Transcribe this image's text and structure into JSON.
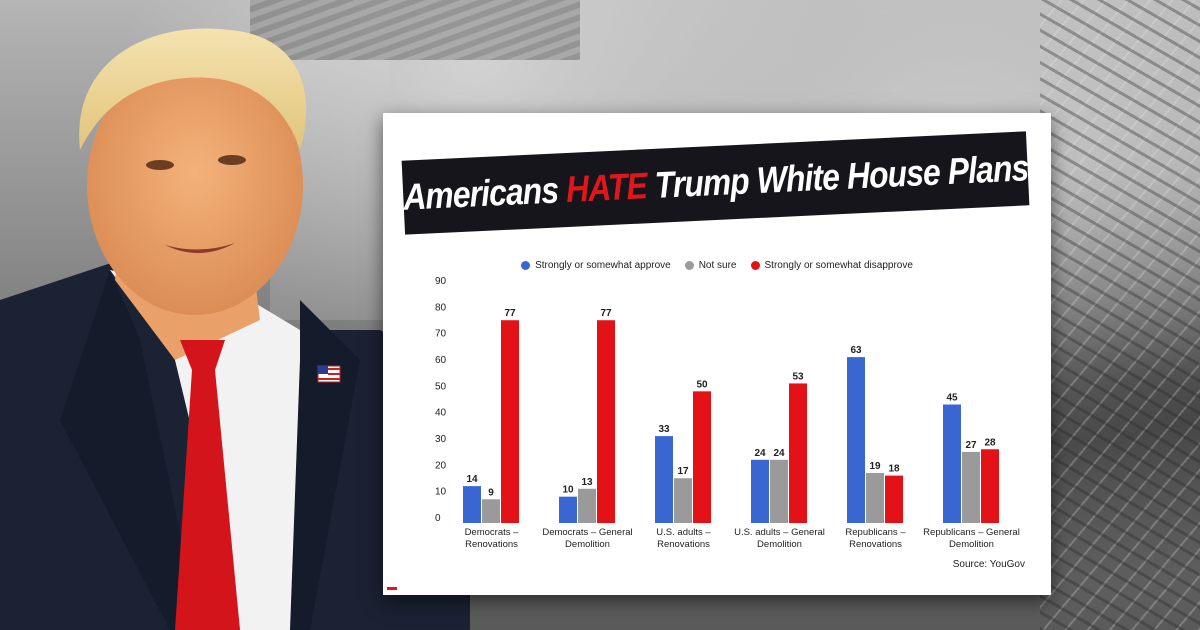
{
  "banner": {
    "prefix": "Americans ",
    "highlight": "HATE",
    "suffix": " Trump White House Plans"
  },
  "colors": {
    "approve": "#3a66d1",
    "not_sure": "#9a9a9a",
    "disapprove": "#e31216",
    "banner_bg": "#15151b",
    "highlight": "#e0161b"
  },
  "chart_data": {
    "type": "bar",
    "categories": [
      [
        "Democrats –",
        "Renovations"
      ],
      [
        "Democrats – General",
        "Demolition"
      ],
      [
        "U.S. adults –",
        "Renovations"
      ],
      [
        "U.S. adults – General",
        "Demolition"
      ],
      [
        "Republicans –",
        "Renovations"
      ],
      [
        "Republicans – General",
        "Demolition"
      ]
    ],
    "series": [
      {
        "name": "Strongly or somewhat approve",
        "values": [
          14,
          10,
          33,
          24,
          63,
          45
        ]
      },
      {
        "name": "Not sure",
        "values": [
          9,
          13,
          17,
          24,
          19,
          27
        ]
      },
      {
        "name": "Strongly or somewhat disapprove",
        "values": [
          77,
          77,
          50,
          53,
          18,
          28
        ]
      }
    ],
    "ylim": [
      0,
      90
    ],
    "yticks": [
      0,
      10,
      20,
      30,
      40,
      50,
      60,
      70,
      80,
      90
    ],
    "grid": false,
    "legend_position": "top-center",
    "source": "Source: YouGov"
  }
}
